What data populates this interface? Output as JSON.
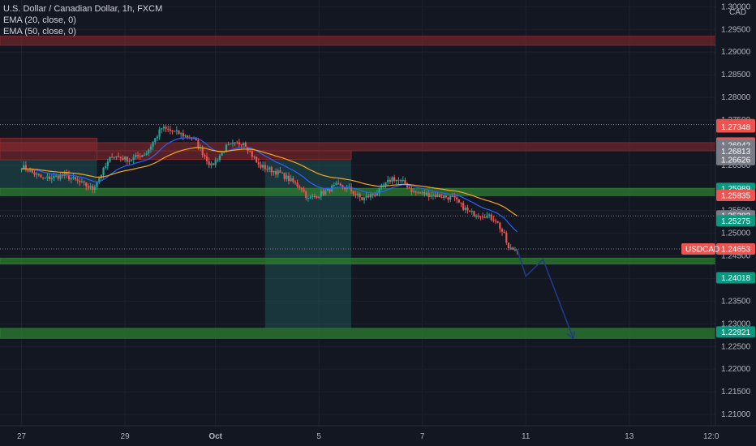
{
  "header": {
    "title": "U.S. Dollar / Canadian Dollar, 1h, FXCM",
    "indicators": [
      "EMA (20, close, 0)",
      "EMA (50, close, 0)"
    ],
    "currency": "CAD"
  },
  "colors": {
    "background": "#131722",
    "grid": "#1e222d",
    "up": "#26a69a",
    "down": "#ef5350",
    "ema20": "#2962ff",
    "ema50": "#f5a623",
    "resistance_zone": "#8b2a2e",
    "support_zone": "#2e7d32",
    "position_zone": "#1f5e5a",
    "projection": "#1e3a8a"
  },
  "chart_data": {
    "type": "candlestick",
    "symbol": "USDCAD",
    "timeframe": "1h",
    "ylim": [
      1.2075,
      1.3015
    ],
    "y_ticks": [
      1.3,
      1.295,
      1.29,
      1.285,
      1.28,
      1.275,
      1.27,
      1.265,
      1.26,
      1.255,
      1.25,
      1.245,
      1.24,
      1.235,
      1.23,
      1.225,
      1.22,
      1.215,
      1.21
    ],
    "x_labels": [
      "27",
      "29",
      "Oct",
      "5",
      "7",
      "11",
      "13",
      "12:0"
    ],
    "x_label_index": [
      0,
      48,
      90,
      138,
      186,
      234,
      282,
      320
    ],
    "x_range": [
      -10,
      322
    ],
    "price_tags": [
      {
        "label": "1.27398",
        "value": 1.27398,
        "color": "#ef5350"
      },
      {
        "label": "1.27348",
        "value": 1.27348,
        "color": "#ef5350"
      },
      {
        "label": "1.26992",
        "value": 1.26992,
        "color": "#ef5350"
      },
      {
        "label": "1.26942",
        "value": 1.26942,
        "color": "#787b86"
      },
      {
        "label": "1.26813",
        "value": 1.26813,
        "color": "#787b86"
      },
      {
        "label": "1.26626",
        "value": 1.26626,
        "color": "#787b86"
      },
      {
        "label": "1.25989",
        "value": 1.25989,
        "color": "#089981"
      },
      {
        "label": "1.25835",
        "value": 1.25835,
        "color": "#ef5350"
      },
      {
        "label": "1.25383",
        "value": 1.25383,
        "color": "#787b86"
      },
      {
        "label": "1.25275",
        "value": 1.25275,
        "color": "#089981"
      },
      {
        "label": "1.24653",
        "value": 1.24653,
        "color": "#ef5350",
        "symbol": "USDCAD"
      },
      {
        "label": "1.24018",
        "value": 1.24018,
        "color": "#089981"
      },
      {
        "label": "1.22821",
        "value": 1.22821,
        "color": "#089981"
      }
    ],
    "zones": [
      {
        "name": "resistance-top",
        "from": 1.2935,
        "to": 1.2915,
        "start": -10,
        "end": 322,
        "kind": "resistance"
      },
      {
        "name": "resistance-mid",
        "from": 1.27,
        "to": 1.2682,
        "start": -10,
        "end": 322,
        "kind": "resistance"
      },
      {
        "name": "resistance-left",
        "from": 1.271,
        "to": 1.2662,
        "start": -10,
        "end": 35,
        "kind": "resistance"
      },
      {
        "name": "resistance-box",
        "from": 1.2682,
        "to": 1.2663,
        "start": 35,
        "end": 153,
        "kind": "resistance"
      },
      {
        "name": "support-upper",
        "from": 1.2599,
        "to": 1.2583,
        "start": -10,
        "end": 322,
        "kind": "support"
      },
      {
        "name": "support-mid",
        "from": 1.2445,
        "to": 1.2432,
        "start": -10,
        "end": 322,
        "kind": "support"
      },
      {
        "name": "support-lower",
        "from": 1.229,
        "to": 1.2268,
        "start": -10,
        "end": 322,
        "kind": "support"
      }
    ],
    "position_box": {
      "top": 1.2662,
      "bottom": 1.229,
      "start": 113,
      "end": 153
    },
    "left_box": {
      "top": 1.2663,
      "bottom": 1.2599,
      "start": -10,
      "end": 35
    },
    "hlines": [
      1.274,
      1.25383,
      1.24653
    ],
    "projection": [
      {
        "i": 230,
        "v": 1.2465
      },
      {
        "i": 234,
        "v": 1.2405
      },
      {
        "i": 242,
        "v": 1.2442
      },
      {
        "i": 256,
        "v": 1.2268
      }
    ],
    "anchors": [
      {
        "i": 0,
        "v": 1.2648
      },
      {
        "i": 10,
        "v": 1.262
      },
      {
        "i": 20,
        "v": 1.2628
      },
      {
        "i": 33,
        "v": 1.2598
      },
      {
        "i": 42,
        "v": 1.2672
      },
      {
        "i": 50,
        "v": 1.2662
      },
      {
        "i": 58,
        "v": 1.2678
      },
      {
        "i": 65,
        "v": 1.2732
      },
      {
        "i": 72,
        "v": 1.2722
      },
      {
        "i": 80,
        "v": 1.2708
      },
      {
        "i": 88,
        "v": 1.2648
      },
      {
        "i": 95,
        "v": 1.269
      },
      {
        "i": 103,
        "v": 1.2702
      },
      {
        "i": 110,
        "v": 1.265
      },
      {
        "i": 120,
        "v": 1.2632
      },
      {
        "i": 130,
        "v": 1.26
      },
      {
        "i": 133,
        "v": 1.2575
      },
      {
        "i": 140,
        "v": 1.259
      },
      {
        "i": 146,
        "v": 1.2605
      },
      {
        "i": 152,
        "v": 1.2598
      },
      {
        "i": 158,
        "v": 1.2575
      },
      {
        "i": 165,
        "v": 1.259
      },
      {
        "i": 172,
        "v": 1.2622
      },
      {
        "i": 178,
        "v": 1.261
      },
      {
        "i": 182,
        "v": 1.259
      },
      {
        "i": 190,
        "v": 1.2585
      },
      {
        "i": 200,
        "v": 1.2578
      },
      {
        "i": 208,
        "v": 1.2545
      },
      {
        "i": 215,
        "v": 1.254
      },
      {
        "i": 220,
        "v": 1.253
      },
      {
        "i": 224,
        "v": 1.2495
      },
      {
        "i": 226,
        "v": 1.2465
      },
      {
        "i": 230,
        "v": 1.2465
      }
    ],
    "last_index": 230,
    "seed": 7
  }
}
